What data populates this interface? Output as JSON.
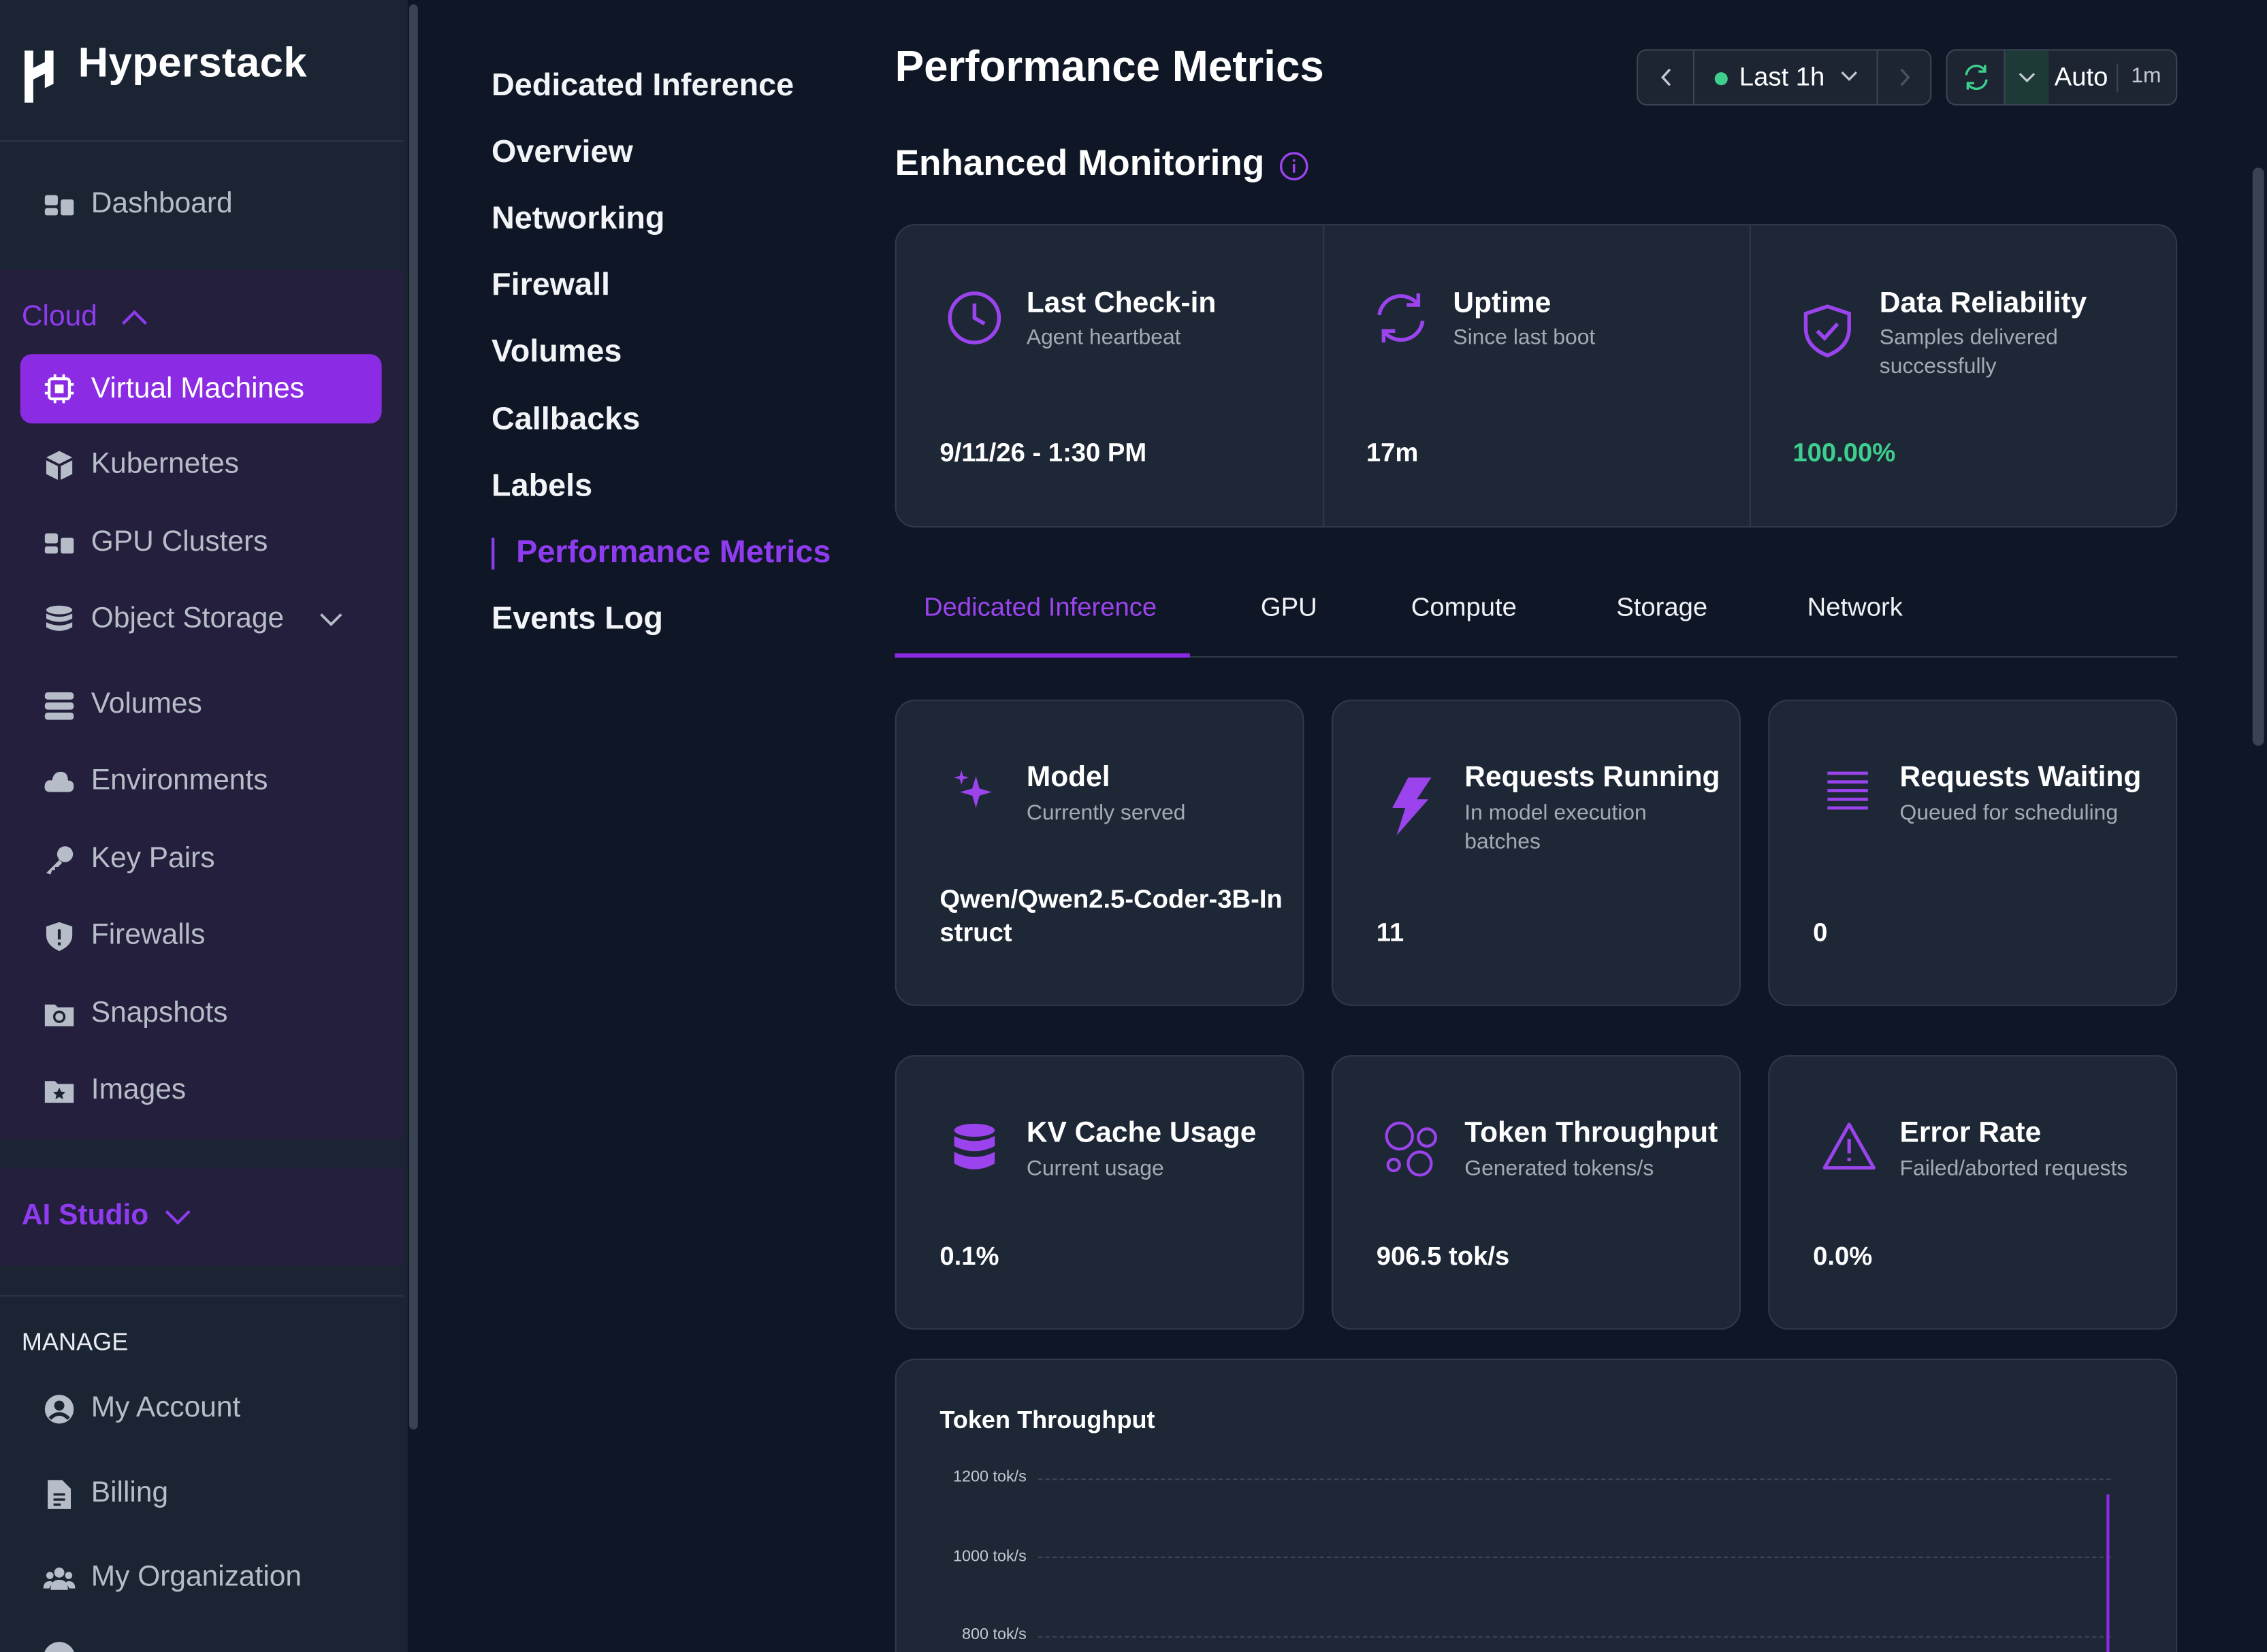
{
  "brand": {
    "name": "Hyperstack"
  },
  "sidebar": {
    "dashboard": {
      "label": "Dashboard"
    },
    "cloud": {
      "title": "Cloud",
      "items": [
        {
          "label": "Virtual Machines",
          "icon": "chip-icon",
          "active": true
        },
        {
          "label": "Kubernetes",
          "icon": "cube-icon"
        },
        {
          "label": "GPU Clusters",
          "icon": "clusters-icon"
        },
        {
          "label": "Object Storage",
          "icon": "database-icon"
        },
        {
          "label": "Volumes",
          "icon": "volumes-icon"
        },
        {
          "label": "Environments",
          "icon": "cloud-icon"
        },
        {
          "label": "Key Pairs",
          "icon": "key-icon"
        },
        {
          "label": "Firewalls",
          "icon": "shield-icon"
        },
        {
          "label": "Snapshots",
          "icon": "snapshot-icon"
        },
        {
          "label": "Images",
          "icon": "image-folder-icon"
        }
      ]
    },
    "ai_studio": {
      "title": "AI Studio"
    },
    "manage": {
      "title": "MANAGE",
      "items": [
        {
          "label": "My Account",
          "icon": "user-circle-icon"
        },
        {
          "label": "Billing",
          "icon": "document-icon"
        },
        {
          "label": "My Organization",
          "icon": "team-icon"
        }
      ]
    }
  },
  "subnav": {
    "items": [
      "Dedicated Inference",
      "Overview",
      "Networking",
      "Firewall",
      "Volumes",
      "Callbacks",
      "Labels",
      "Performance Metrics",
      "Events Log"
    ],
    "active": "Performance Metrics"
  },
  "header": {
    "title": "Performance Metrics",
    "time_range": "Last 1h",
    "refresh_mode": "Auto",
    "refresh_interval": "1m"
  },
  "monitoring": {
    "title": "Enhanced Monitoring",
    "cards": [
      {
        "title": "Last Check-in",
        "subtitle": "Agent heartbeat",
        "value": "9/11/26 - 1:30 PM",
        "icon": "clock-icon"
      },
      {
        "title": "Uptime",
        "subtitle": "Since last boot",
        "value": "17m",
        "icon": "refresh-icon"
      },
      {
        "title": "Data Reliability",
        "subtitle": "Samples delivered successfully",
        "value": "100.00%",
        "icon": "shield-check-icon",
        "value_color": "#3ecf8e"
      }
    ]
  },
  "tabs": {
    "items": [
      "Dedicated Inference",
      "GPU",
      "Compute",
      "Storage",
      "Network"
    ],
    "active": "Dedicated Inference"
  },
  "metrics": [
    {
      "title": "Model",
      "subtitle": "Currently served",
      "value": "Qwen/Qwen2.5-Coder-3B-Instruct",
      "icon": "sparkles-icon"
    },
    {
      "title": "Requests Running",
      "subtitle": "In model execution batches",
      "value": "11",
      "icon": "lightning-icon"
    },
    {
      "title": "Requests Waiting",
      "subtitle": "Queued for scheduling",
      "value": "0",
      "icon": "stack-lines-icon"
    },
    {
      "title": "KV Cache Usage",
      "subtitle": "Current usage",
      "value": "0.1%",
      "icon": "database-icon"
    },
    {
      "title": "Token Throughput",
      "subtitle": "Generated tokens/s",
      "value": "906.5 tok/s",
      "icon": "bubbles-icon"
    },
    {
      "title": "Error Rate",
      "subtitle": "Failed/aborted requests",
      "value": "0.0%",
      "icon": "warning-icon"
    }
  ],
  "colors": {
    "accent": "#8b2be3",
    "success": "#3ecf8e",
    "background": "#0f1726",
    "card": "#1e2736"
  },
  "chart_data": {
    "type": "line",
    "title": "Token Throughput",
    "ylabel": "",
    "y_ticks": [
      "1200 tok/s",
      "1000 tok/s",
      "800 tok/s"
    ],
    "ylim": [
      800,
      1200
    ],
    "grid": true,
    "series": [
      {
        "values": [
          1160,
          800
        ]
      }
    ]
  }
}
